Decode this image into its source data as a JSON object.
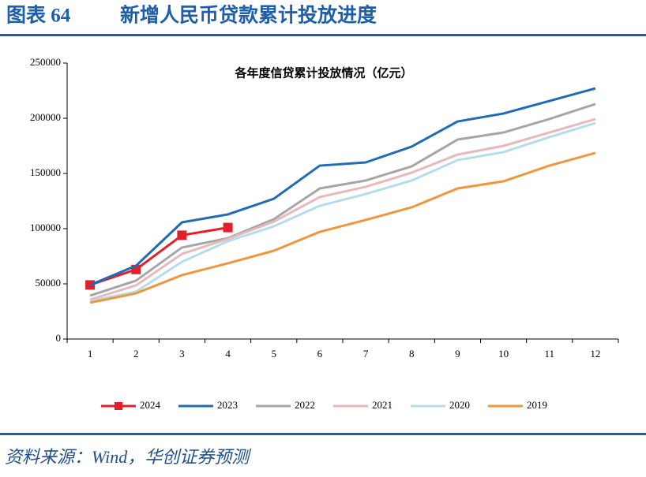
{
  "header": {
    "label": "图表 64",
    "title": "新增人民币贷款累计投放进度"
  },
  "chart_data": {
    "type": "line",
    "title": "各年度信贷累计投放情况（亿元）",
    "categories": [
      "1",
      "2",
      "3",
      "4",
      "5",
      "6",
      "7",
      "8",
      "9",
      "10",
      "11",
      "12"
    ],
    "ylim": [
      0,
      250000
    ],
    "yticks": [
      0,
      50000,
      100000,
      150000,
      200000,
      250000
    ],
    "legend": "bottom",
    "series": [
      {
        "name": "2024",
        "color": "#e3202a",
        "marker": "square",
        "values": [
          49000,
          63000,
          94000,
          101000,
          null,
          null,
          null,
          null,
          null,
          null,
          null,
          null
        ]
      },
      {
        "name": "2023",
        "color": "#1f6bb5",
        "values": [
          49000,
          66400,
          105700,
          112900,
          127100,
          157100,
          160000,
          174300,
          197100,
          204300,
          215700,
          227100
        ]
      },
      {
        "name": "2022",
        "color": "#a6a6a6",
        "values": [
          39300,
          52900,
          82900,
          91400,
          108600,
          136400,
          143600,
          156400,
          180700,
          187100,
          199300,
          212900
        ]
      },
      {
        "name": "2021",
        "color": "#e8b9b9",
        "values": [
          35700,
          48600,
          77100,
          90700,
          106400,
          128600,
          137900,
          150700,
          167100,
          175000,
          187100,
          199300
        ]
      },
      {
        "name": "2020",
        "color": "#b4dcea",
        "values": [
          34300,
          42900,
          70000,
          88600,
          102100,
          120700,
          131400,
          143600,
          162100,
          169300,
          182900,
          195700
        ]
      },
      {
        "name": "2019",
        "color": "#f0963c",
        "values": [
          32900,
          41400,
          57900,
          68600,
          80000,
          97100,
          107900,
          119300,
          136400,
          142900,
          157100,
          168600
        ]
      }
    ]
  },
  "source": "资料来源：Wind，华创证券预测"
}
